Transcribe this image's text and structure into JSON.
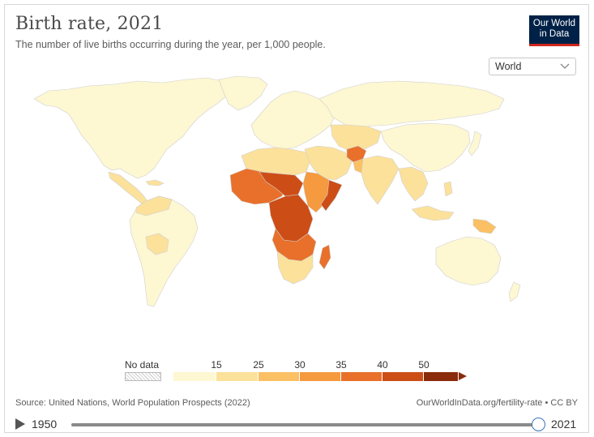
{
  "header": {
    "title": "Birth rate, 2021",
    "subtitle": "The number of live births occurring during the year, per 1,000 people."
  },
  "logo": {
    "line1": "Our World",
    "line2": "in Data",
    "bg_color": "#002147",
    "accent_color": "#ce261e"
  },
  "region_selector": {
    "selected": "World"
  },
  "legend": {
    "no_data_label": "No data",
    "ticks": [
      "15",
      "25",
      "30",
      "35",
      "40",
      "50"
    ],
    "colors": [
      "#fdf7d2",
      "#fce19b",
      "#fac063",
      "#f59a3e",
      "#e8702a",
      "#cd4d17",
      "#8a2c0c"
    ]
  },
  "footer": {
    "source": "Source: United Nations, World Population Prospects (2022)",
    "license": "OurWorldInData.org/fertility-rate • CC BY"
  },
  "timeline": {
    "start_year": "1950",
    "end_year": "2021",
    "progress": 1.0
  }
}
